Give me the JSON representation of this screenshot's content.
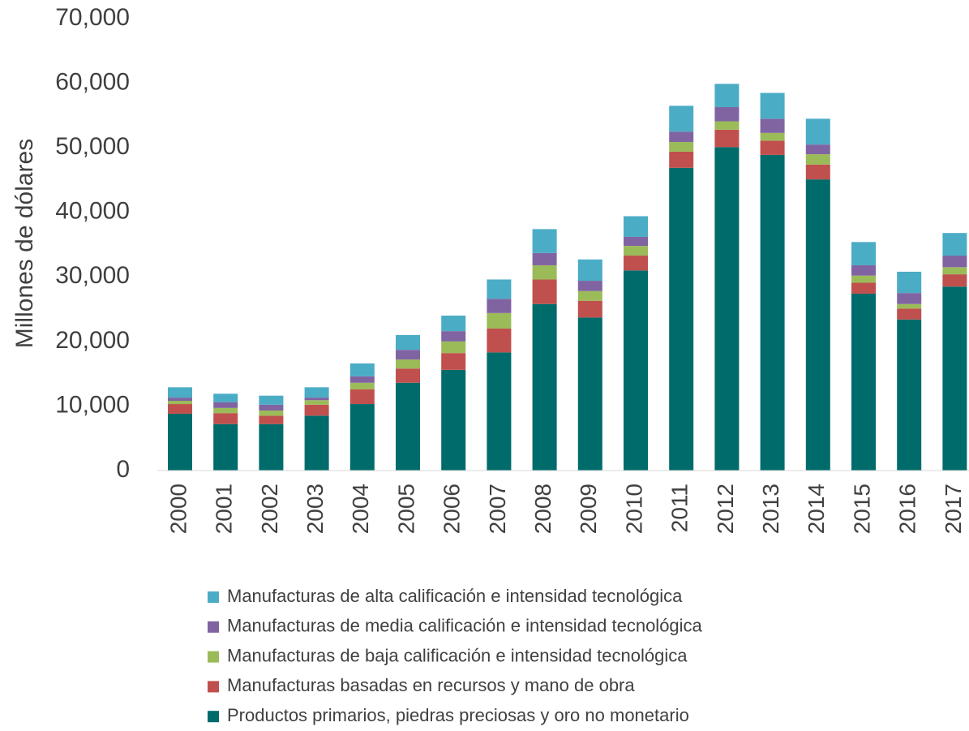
{
  "chart_data": {
    "type": "stacked_bar",
    "y_label": "Millones de dólares",
    "categories": [
      "2000",
      "2001",
      "2002",
      "2003",
      "2004",
      "2005",
      "2006",
      "2007",
      "2008",
      "2009",
      "2010",
      "2011",
      "2012",
      "2013",
      "2014",
      "2015",
      "2016",
      "2017"
    ],
    "series": [
      {
        "name": "Productos primarios, piedras preciosas y oro no monetario",
        "color": "#006b6b",
        "values": [
          8800,
          7200,
          7200,
          8500,
          10300,
          13600,
          15600,
          18300,
          25800,
          23700,
          31000,
          46900,
          50100,
          48900,
          45100,
          27400,
          23400,
          28500
        ]
      },
      {
        "name": "Manufacturas basadas en recursos y mano de obra",
        "color": "#c0504d",
        "values": [
          1500,
          1700,
          1300,
          1700,
          2300,
          2200,
          2600,
          3700,
          3800,
          2600,
          2300,
          2500,
          2700,
          2200,
          2300,
          1700,
          1700,
          1900
        ]
      },
      {
        "name": "Manufacturas de baja calificación e intensidad tecnológica",
        "color": "#9bbb59",
        "values": [
          500,
          800,
          800,
          700,
          1000,
          1400,
          1800,
          2400,
          2200,
          1500,
          1500,
          1500,
          1300,
          1200,
          1600,
          1100,
          700,
          1100
        ]
      },
      {
        "name": "Manufacturas de media calificación e intensidad tecnológica",
        "color": "#8064a2",
        "values": [
          500,
          900,
          900,
          400,
          1000,
          1500,
          1600,
          2200,
          1900,
          1600,
          1400,
          1600,
          2200,
          2200,
          1500,
          1600,
          1700,
          1800
        ]
      },
      {
        "name": "Manufacturas de alta calificación e intensidad tecnológica",
        "color": "#4bacc6",
        "values": [
          1600,
          1300,
          1400,
          1600,
          2000,
          2300,
          2400,
          3000,
          3700,
          3300,
          3200,
          4000,
          3600,
          4000,
          4000,
          3600,
          3300,
          3500
        ]
      }
    ],
    "ylim": [
      0,
      70000
    ],
    "yticks": [
      0,
      {
        "value": 10000,
        "label": "10,000"
      },
      {
        "value": 20000,
        "label": "20,000"
      },
      {
        "value": 30000,
        "label": "30,000"
      },
      {
        "value": 40000,
        "label": "40,000"
      },
      {
        "value": 50000,
        "label": "50,000"
      },
      {
        "value": 60000,
        "label": "60,000"
      },
      {
        "value": 70000,
        "label": "70,000"
      }
    ],
    "grid": false
  }
}
